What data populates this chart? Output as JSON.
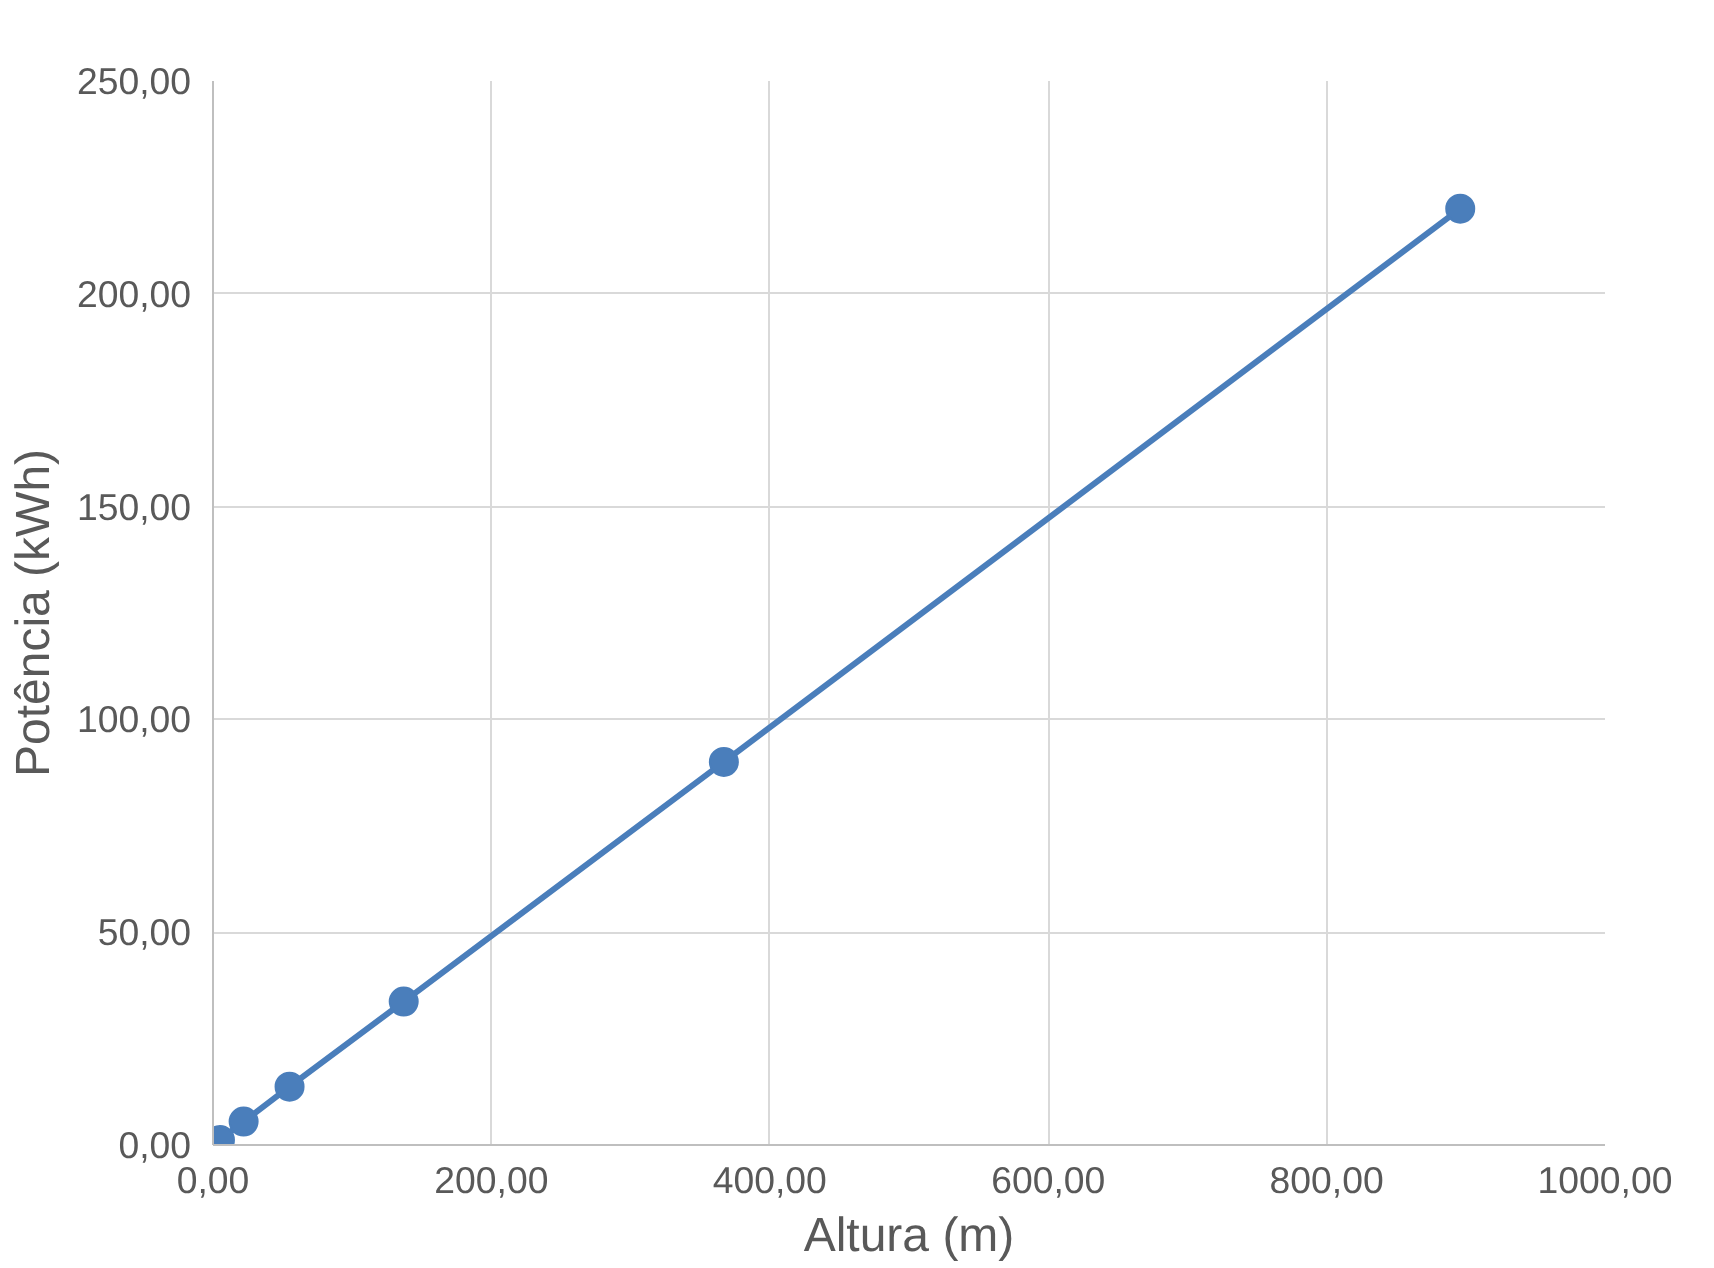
{
  "chart_data": {
    "type": "line",
    "xlabel": "Altura (m)",
    "ylabel": "Potência (kWh)",
    "x": [
      1,
      5,
      22,
      55,
      137,
      367,
      896
    ],
    "series": [
      {
        "color": "#4a7ebb",
        "values": [
          0.3,
          1.2,
          5.5,
          13.7,
          33.7,
          90,
          220
        ]
      }
    ],
    "xlim": [
      0,
      1000
    ],
    "ylim": [
      0,
      250
    ],
    "xticks": [
      {
        "value": 0,
        "label": "0,00"
      },
      {
        "value": 200,
        "label": "200,00"
      },
      {
        "value": 400,
        "label": "400,00"
      },
      {
        "value": 600,
        "label": "600,00"
      },
      {
        "value": 800,
        "label": "800,00"
      },
      {
        "value": 1000,
        "label": "1000,00"
      }
    ],
    "yticks": [
      {
        "value": 0,
        "label": "0,00"
      },
      {
        "value": 50,
        "label": "50,00"
      },
      {
        "value": 100,
        "label": "100,00"
      },
      {
        "value": 150,
        "label": "150,00"
      },
      {
        "value": 200,
        "label": "200,00"
      },
      {
        "value": 250,
        "label": "250,00"
      }
    ],
    "grid": true,
    "marker": "circle",
    "line_style": "solid"
  }
}
